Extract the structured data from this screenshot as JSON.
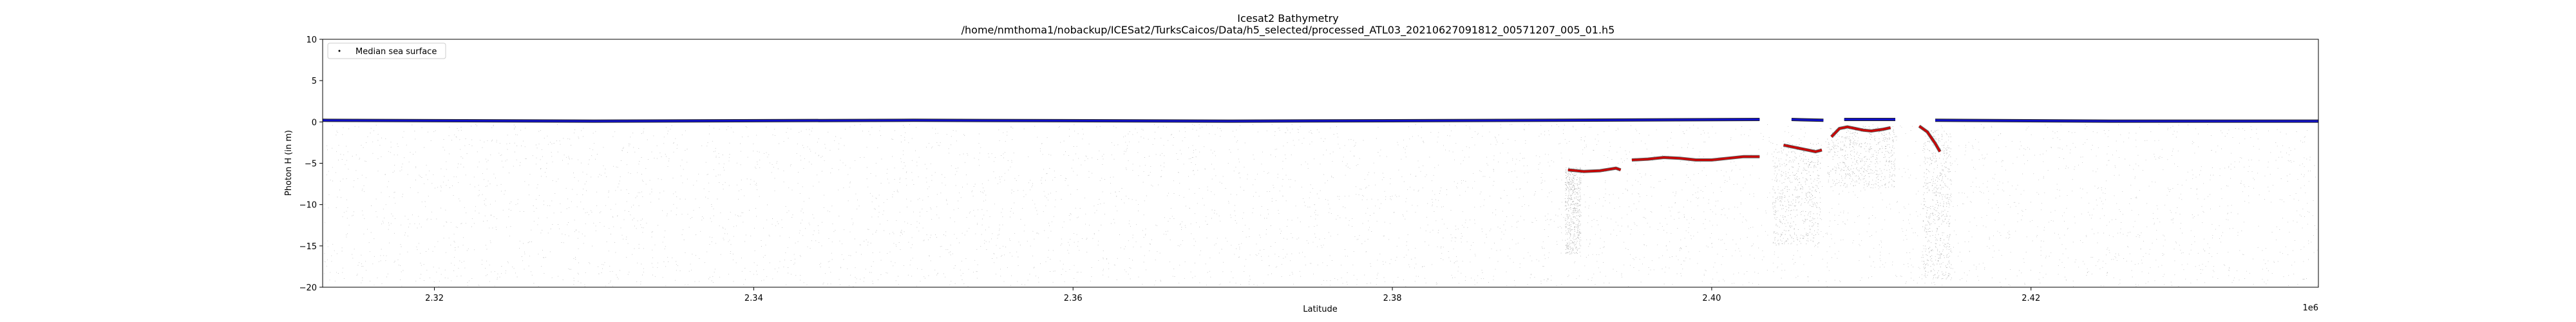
{
  "chart_data": {
    "type": "scatter",
    "title": "Icesat2 Bathymetry",
    "subtitle": "/home/nmthoma1/nobackup/ICESat2/TurksCaicos/Data/h5_selected/processed_ATL03_20210627091812_00571207_005_01.h5",
    "xlabel": "Latitude",
    "ylabel": "Photon H (in m)",
    "x_offset_label": "1e6",
    "xlim": [
      2313000,
      2438000
    ],
    "ylim": [
      -20,
      10
    ],
    "x_ticks": [
      2320000,
      2340000,
      2360000,
      2380000,
      2400000,
      2420000
    ],
    "x_tick_labels": [
      "2.32",
      "2.34",
      "2.36",
      "2.38",
      "2.40",
      "2.42"
    ],
    "y_ticks": [
      10,
      5,
      0,
      -5,
      -10,
      -15,
      -20
    ],
    "y_tick_labels": [
      "10",
      "5",
      "0",
      "−5",
      "−10",
      "−15",
      "−20"
    ],
    "grid": false,
    "legend": {
      "position": "top-left",
      "entries": [
        {
          "label": "Median sea surface",
          "color": "#000000",
          "marker": "point"
        }
      ]
    },
    "series": [
      {
        "name": "Median sea surface",
        "color": "#1010c8",
        "segments": [
          [
            [
              2313000,
              0.2
            ],
            [
              2330000,
              0.1
            ],
            [
              2350000,
              0.2
            ],
            [
              2370000,
              0.1
            ],
            [
              2390000,
              0.2
            ],
            [
              2403000,
              0.3
            ]
          ],
          [
            [
              2405000,
              0.3
            ],
            [
              2407000,
              0.2
            ]
          ],
          [
            [
              2408300,
              0.3
            ],
            [
              2411500,
              0.3
            ]
          ],
          [
            [
              2414000,
              0.2
            ],
            [
              2425000,
              0.1
            ],
            [
              2438000,
              0.1
            ]
          ]
        ]
      },
      {
        "color": "#cc0000",
        "segments": [
          [
            [
              2391000,
              -5.8
            ],
            [
              2392000,
              -6.0
            ],
            [
              2393000,
              -5.9
            ],
            [
              2394000,
              -5.6
            ],
            [
              2394300,
              -5.8
            ]
          ],
          [
            [
              2395000,
              -4.6
            ],
            [
              2396000,
              -4.5
            ],
            [
              2397000,
              -4.3
            ],
            [
              2398000,
              -4.4
            ],
            [
              2399000,
              -4.6
            ],
            [
              2400000,
              -4.6
            ],
            [
              2401000,
              -4.4
            ],
            [
              2402000,
              -4.2
            ],
            [
              2403000,
              -4.2
            ]
          ],
          [
            [
              2404500,
              -2.8
            ],
            [
              2405500,
              -3.2
            ],
            [
              2406500,
              -3.6
            ],
            [
              2406900,
              -3.4
            ]
          ],
          [
            [
              2407500,
              -1.8
            ],
            [
              2408000,
              -0.8
            ],
            [
              2408500,
              -0.6
            ],
            [
              2409000,
              -0.8
            ],
            [
              2409500,
              -1.0
            ],
            [
              2410000,
              -1.1
            ],
            [
              2410700,
              -0.9
            ],
            [
              2411200,
              -0.7
            ]
          ],
          [
            [
              2413000,
              -0.5
            ],
            [
              2413500,
              -1.2
            ],
            [
              2414000,
              -2.6
            ],
            [
              2414300,
              -3.6
            ]
          ]
        ]
      }
    ],
    "colors": {
      "noise": "#9a9a9a",
      "surface_dark": "#000000",
      "surface": "#1010c8",
      "seafloor": "#cc0000",
      "axes": "#000000"
    }
  }
}
